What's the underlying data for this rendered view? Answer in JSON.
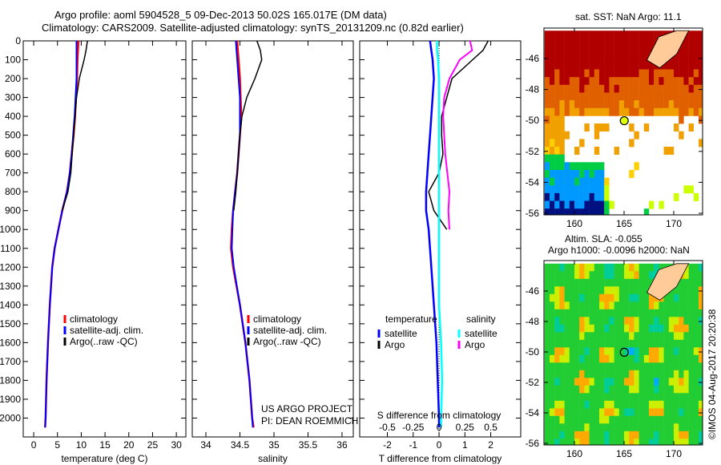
{
  "title": {
    "line1": "Argo profile: aoml 5904528_5 09-Dec-2013 50.02S 165.017E (DM data)",
    "line2": "Climatology: CARS2009. Satellite-adjusted climatology: synTS_20131209.nc (0.82d earlier)"
  },
  "credit": "US ARGO PROJECT",
  "pi": "PI: DEAN ROEMMICH",
  "watermark": "©IMOS 04-Aug-2017 20:20:38",
  "colors": {
    "climatology": "#ff0000",
    "satellite": "#0000ff",
    "argo": "#000000",
    "sal_satellite": "#00ffff",
    "sal_argo": "#ff00ff",
    "land": "#ffcc99"
  },
  "chart_data": [
    {
      "type": "line",
      "id": "temperature",
      "xlabel": "temperature (deg C)",
      "ylabel": "",
      "xlim": [
        -2.2,
        32
      ],
      "ylim": [
        2100,
        0
      ],
      "xticks": [
        0,
        5,
        10,
        15,
        20,
        25,
        30
      ],
      "yticks": [
        0,
        100,
        200,
        300,
        400,
        500,
        600,
        700,
        800,
        900,
        1000,
        1100,
        1200,
        1300,
        1400,
        1500,
        1600,
        1700,
        1800,
        1900,
        2000
      ],
      "legend": [
        "climatology",
        "satellite-adj. clim.",
        "Argo(..raw -QC)"
      ],
      "legend_placement": "center-left",
      "depth": [
        0,
        50,
        100,
        200,
        300,
        400,
        500,
        600,
        700,
        800,
        900,
        1000,
        1100,
        1200,
        1400,
        1600,
        1800,
        2000,
        2050
      ],
      "series": [
        {
          "name": "climatology",
          "values": [
            9.4,
            9.3,
            9.2,
            9.1,
            8.9,
            8.7,
            8.4,
            8.0,
            7.6,
            7.0,
            6.0,
            5.2,
            4.4,
            3.9,
            3.4,
            3.0,
            2.7,
            2.5,
            2.4
          ]
        },
        {
          "name": "satellite-adj. clim.",
          "values": [
            9.0,
            9.0,
            9.0,
            9.0,
            8.8,
            8.6,
            8.3,
            8.0,
            7.6,
            7.0,
            6.0,
            5.2,
            4.4,
            3.9,
            3.4,
            3.0,
            2.7,
            2.5,
            2.4
          ]
        },
        {
          "name": "Argo(..raw -QC)",
          "values": [
            11.3,
            11.0,
            10.6,
            9.6,
            9.0,
            8.7,
            8.4,
            8.1,
            7.8,
            7.2,
            6.0
          ]
        }
      ]
    },
    {
      "type": "line",
      "id": "salinity",
      "xlabel": "salinity",
      "xlim": [
        33.8,
        36.165
      ],
      "ylim": [
        2100,
        0
      ],
      "xticks": [
        34,
        34.5,
        35,
        35.5,
        36
      ],
      "legend": [
        "climatology",
        "satellite-adj. clim.",
        "Argo(..raw -QC)"
      ],
      "depth": [
        0,
        50,
        100,
        200,
        300,
        400,
        500,
        600,
        700,
        800,
        900,
        1000,
        1100,
        1200,
        1400,
        1600,
        1800,
        2000,
        2050
      ],
      "series": [
        {
          "name": "climatology",
          "values": [
            34.46,
            34.47,
            34.48,
            34.5,
            34.51,
            34.52,
            34.5,
            34.48,
            34.46,
            34.43,
            34.4,
            34.38,
            34.37,
            34.4,
            34.5,
            34.58,
            34.64,
            34.68,
            34.7
          ]
        },
        {
          "name": "satellite-adj. clim.",
          "values": [
            34.44,
            34.45,
            34.46,
            34.48,
            34.5,
            34.5,
            34.5,
            34.48,
            34.46,
            34.43,
            34.4,
            34.39,
            34.38,
            34.41,
            34.5,
            34.58,
            34.64,
            34.68,
            34.69
          ]
        },
        {
          "name": "Argo(..raw -QC)",
          "values": [
            34.75,
            34.8,
            34.82,
            34.72,
            34.6,
            34.53,
            34.5,
            34.48,
            34.46,
            34.44,
            34.41
          ]
        }
      ]
    },
    {
      "type": "line",
      "id": "difference",
      "xlabel": "T difference from climatology",
      "xlabel2": "S difference from climatology",
      "xlim": [
        -3.07,
        3.16
      ],
      "ylim": [
        2100,
        0
      ],
      "xticks": [
        -2,
        -1,
        0,
        1,
        2
      ],
      "xticks2": [
        "-0.5",
        "-0.25",
        "0",
        "0.25",
        "0.5"
      ],
      "legend_t": {
        "title": "temperature",
        "items": [
          "satellite",
          "Argo"
        ]
      },
      "legend_s": {
        "title": "salinity",
        "items": [
          "satellite",
          "Argo"
        ]
      },
      "depth": [
        0,
        50,
        100,
        200,
        300,
        400,
        500,
        600,
        700,
        800,
        900,
        1000,
        1200,
        1400,
        1600,
        1800,
        2000,
        2050
      ],
      "series": [
        {
          "name": "T satellite",
          "values": [
            -0.35,
            -0.3,
            -0.25,
            -0.2,
            -0.25,
            -0.3,
            -0.35,
            -0.4,
            -0.45,
            -0.5,
            -0.5,
            -0.4,
            -0.3,
            -0.2,
            -0.1,
            -0.05,
            0,
            0
          ]
        },
        {
          "name": "T Argo",
          "values": [
            1.9,
            1.7,
            1.3,
            0.5,
            0.3,
            0.1,
            0.1,
            0.15,
            0.0,
            -0.4,
            -0.2,
            0.3
          ]
        },
        {
          "name": "S satellite",
          "values": [
            -0.02,
            -0.02,
            -0.01,
            0,
            0,
            0,
            0,
            0,
            0,
            0,
            0,
            0,
            0,
            0,
            0.02,
            0.03,
            0.02,
            0.02
          ]
        },
        {
          "name": "S Argo",
          "values": [
            0.3,
            0.32,
            0.2,
            0.1,
            0.05,
            0.04,
            0.05,
            0.06,
            0.08,
            0.1,
            0.09,
            0.1
          ]
        }
      ]
    }
  ],
  "map_sst": {
    "title": "sat. SST: NaN Argo: 11.1",
    "xticks": [
      "160",
      "165",
      "170"
    ],
    "yticks": [
      "-46",
      "-48",
      "-50",
      "-52",
      "-54",
      "-56"
    ]
  },
  "map_sla": {
    "title1": "Altim. SLA: -0.055",
    "title2": "Argo h1000: -0.0096 h2000: NaN",
    "xticks": [
      "160",
      "165",
      "170"
    ],
    "yticks": [
      "-46",
      "-48",
      "-50",
      "-52",
      "-54",
      "-56"
    ]
  }
}
